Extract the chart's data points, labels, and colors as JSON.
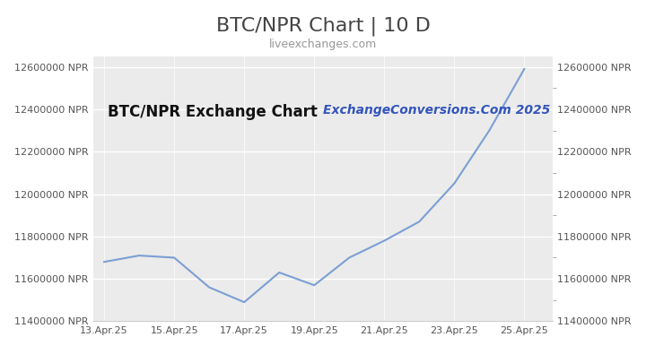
{
  "title": "BTC/NPR Chart | 10 D",
  "subtitle": "liveexchanges.com",
  "watermark": "ExchangeConversions.Com 2025",
  "inner_label": "BTC/NPR Exchange Chart",
  "x_labels": [
    "13.Apr.25",
    "15.Apr.25",
    "17.Apr.25",
    "19.Apr.25",
    "21.Apr.25",
    "23.Apr.25",
    "25.Apr.25"
  ],
  "x_values": [
    0,
    2,
    4,
    6,
    8,
    10,
    12
  ],
  "y_data_x": [
    0,
    1,
    2,
    3,
    4,
    5,
    6,
    7,
    8,
    9,
    10,
    11,
    12
  ],
  "y_data_y": [
    11680000,
    11710000,
    11700000,
    11560000,
    11490000,
    11630000,
    11570000,
    11700000,
    11780000,
    11870000,
    12050000,
    12300000,
    12590000
  ],
  "ylim": [
    11400000,
    12650000
  ],
  "yticks": [
    11400000,
    11600000,
    11800000,
    12000000,
    12200000,
    12400000,
    12600000
  ],
  "line_color": "#7b9fd4",
  "background_color": "#ffffff",
  "plot_bg_color": "#ebebeb",
  "title_color": "#444444",
  "subtitle_color": "#999999",
  "label_color": "#555555",
  "watermark_color": "#3355bb",
  "inner_label_color": "#111111",
  "grid_color": "#ffffff",
  "title_fontsize": 16,
  "subtitle_fontsize": 9,
  "tick_fontsize": 8,
  "inner_label_fontsize": 12,
  "watermark_fontsize": 10
}
